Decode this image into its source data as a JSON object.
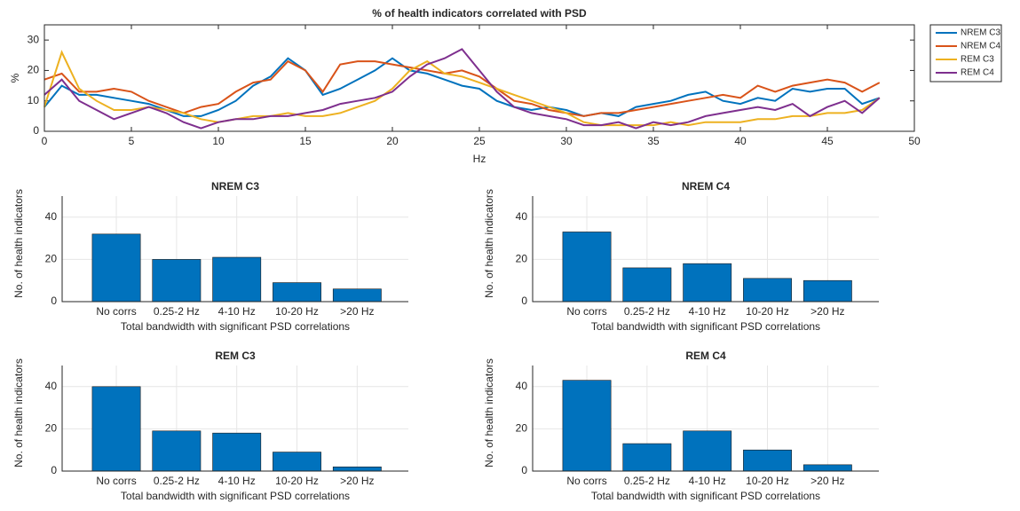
{
  "chart_data": [
    {
      "type": "line",
      "title": "% of health indicators correlated with PSD",
      "x_label": "Hz",
      "y_label": "%",
      "x": [
        0,
        1,
        2,
        3,
        4,
        5,
        6,
        7,
        8,
        9,
        10,
        11,
        12,
        13,
        14,
        15,
        16,
        17,
        18,
        19,
        20,
        21,
        22,
        23,
        24,
        25,
        26,
        27,
        28,
        29,
        30,
        31,
        32,
        33,
        34,
        35,
        36,
        37,
        38,
        39,
        40,
        41,
        42,
        43,
        44,
        45,
        46,
        47,
        48
      ],
      "series": [
        {
          "name": "NREM C3",
          "color": "#0072bd",
          "values": [
            8,
            15,
            12,
            12,
            11,
            10,
            9,
            7,
            5,
            5,
            7,
            10,
            15,
            18,
            24,
            20,
            12,
            14,
            17,
            20,
            24,
            20,
            19,
            17,
            15,
            14,
            10,
            8,
            7,
            8,
            7,
            5,
            6,
            5,
            8,
            9,
            10,
            12,
            13,
            10,
            9,
            11,
            10,
            14,
            13,
            14,
            14,
            9,
            11
          ]
        },
        {
          "name": "NREM C4",
          "color": "#d95319",
          "values": [
            17,
            19,
            13,
            13,
            14,
            13,
            10,
            8,
            6,
            8,
            9,
            13,
            16,
            17,
            23,
            20,
            13,
            22,
            23,
            23,
            22,
            21,
            20,
            19,
            20,
            18,
            14,
            10,
            9,
            7,
            6,
            5,
            6,
            6,
            7,
            8,
            9,
            10,
            11,
            12,
            11,
            15,
            13,
            15,
            16,
            17,
            16,
            13,
            16
          ]
        },
        {
          "name": "REM C3",
          "color": "#edb120",
          "values": [
            8,
            26,
            14,
            10,
            7,
            7,
            8,
            7,
            6,
            4,
            3,
            4,
            5,
            5,
            6,
            5,
            5,
            6,
            8,
            10,
            14,
            20,
            23,
            19,
            18,
            16,
            14,
            12,
            10,
            8,
            6,
            3,
            2,
            2,
            2,
            2,
            3,
            2,
            3,
            3,
            3,
            4,
            4,
            5,
            5,
            6,
            6,
            7,
            11
          ]
        },
        {
          "name": "REM C4",
          "color": "#7e2f8e",
          "values": [
            12,
            17,
            10,
            7,
            4,
            6,
            8,
            6,
            3,
            1,
            3,
            4,
            4,
            5,
            5,
            6,
            7,
            9,
            10,
            11,
            13,
            18,
            22,
            24,
            27,
            20,
            13,
            8,
            6,
            5,
            4,
            2,
            2,
            3,
            1,
            3,
            2,
            3,
            5,
            6,
            7,
            8,
            7,
            9,
            5,
            8,
            10,
            6,
            11
          ]
        }
      ],
      "xlim": [
        0,
        50
      ],
      "xticks": [
        0,
        5,
        10,
        15,
        20,
        25,
        30,
        35,
        40,
        45,
        50
      ],
      "ylim": [
        0,
        35
      ],
      "yticks": [
        0,
        10,
        20,
        30
      ],
      "grid": false,
      "legend": "outside-right"
    },
    {
      "type": "bar",
      "title": "NREM C3",
      "x_label": "Total bandwidth with significant PSD correlations",
      "y_label": "No. of health indicators",
      "categories": [
        "No corrs",
        "0.25-2 Hz",
        "4-10 Hz",
        "10-20 Hz",
        ">20 Hz"
      ],
      "values": [
        32,
        20,
        21,
        9,
        6
      ],
      "color": "#0072bd",
      "ylim": [
        0,
        50
      ],
      "yticks": [
        0,
        20,
        40
      ],
      "grid": true
    },
    {
      "type": "bar",
      "title": "NREM C4",
      "x_label": "Total bandwidth with significant PSD correlations",
      "y_label": "No. of health indicators",
      "categories": [
        "No corrs",
        "0.25-2 Hz",
        "4-10 Hz",
        "10-20 Hz",
        ">20 Hz"
      ],
      "values": [
        33,
        16,
        18,
        11,
        10
      ],
      "color": "#0072bd",
      "ylim": [
        0,
        50
      ],
      "yticks": [
        0,
        20,
        40
      ],
      "grid": true
    },
    {
      "type": "bar",
      "title": "REM C3",
      "x_label": "Total bandwidth with significant PSD correlations",
      "y_label": "No. of health indicators",
      "categories": [
        "No corrs",
        "0.25-2 Hz",
        "4-10 Hz",
        "10-20 Hz",
        ">20 Hz"
      ],
      "values": [
        40,
        19,
        18,
        9,
        2
      ],
      "color": "#0072bd",
      "ylim": [
        0,
        50
      ],
      "yticks": [
        0,
        20,
        40
      ],
      "grid": true
    },
    {
      "type": "bar",
      "title": "REM C4",
      "x_label": "Total bandwidth with significant PSD correlations",
      "y_label": "No. of health indicators",
      "categories": [
        "No corrs",
        "0.25-2 Hz",
        "4-10 Hz",
        "10-20 Hz",
        ">20 Hz"
      ],
      "values": [
        43,
        13,
        19,
        10,
        3
      ],
      "color": "#0072bd",
      "ylim": [
        0,
        50
      ],
      "yticks": [
        0,
        20,
        40
      ],
      "grid": true
    }
  ]
}
